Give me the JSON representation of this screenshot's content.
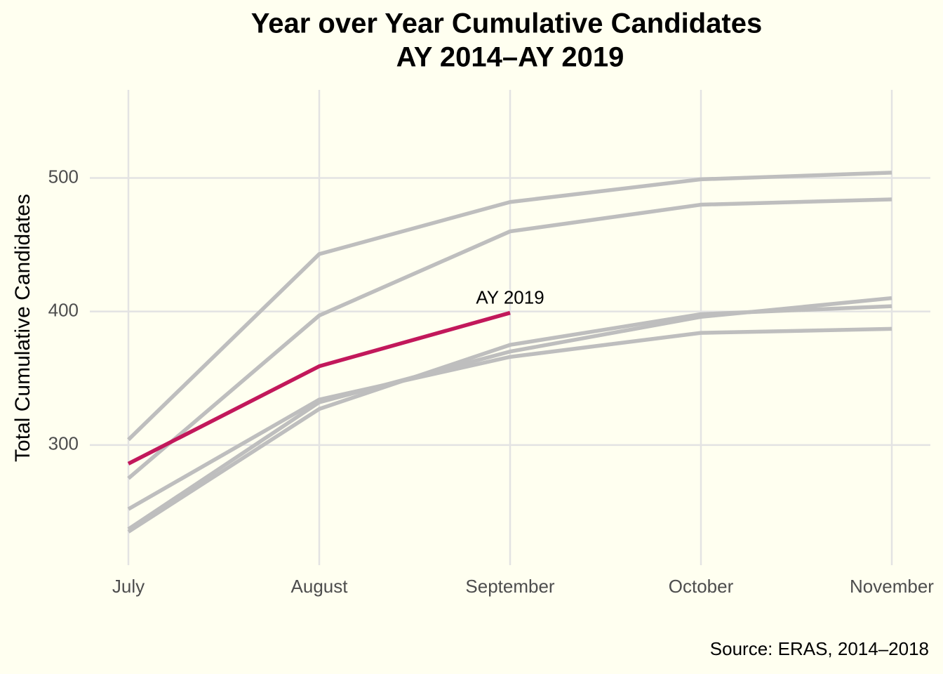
{
  "chart_data": {
    "type": "line",
    "title": "Year over Year Cumulative Candidates",
    "subtitle": "AY 2014–AY 2019",
    "ylabel": "Total Cumulative Candidates",
    "caption": "Source: ERAS, 2014–2018",
    "categories": [
      "July",
      "August",
      "September",
      "October",
      "November"
    ],
    "series": [
      {
        "color": "#bebebe",
        "values": [
          304,
          443,
          482,
          499,
          504
        ]
      },
      {
        "color": "#bebebe",
        "values": [
          275,
          397,
          460,
          480,
          484
        ]
      },
      {
        "color": "#bebebe",
        "values": [
          252,
          334,
          366,
          384,
          387
        ]
      },
      {
        "color": "#bebebe",
        "values": [
          237,
          332,
          370,
          396,
          410
        ]
      },
      {
        "color": "#bebebe",
        "values": [
          235,
          327,
          375,
          398,
          404
        ]
      },
      {
        "name": "AY 2019",
        "color": "#c2185b",
        "values": [
          286,
          359,
          399,
          null,
          null
        ]
      }
    ],
    "ylim": [
      210,
      566
    ],
    "yticks": [
      300,
      400,
      500
    ],
    "grid": true
  }
}
